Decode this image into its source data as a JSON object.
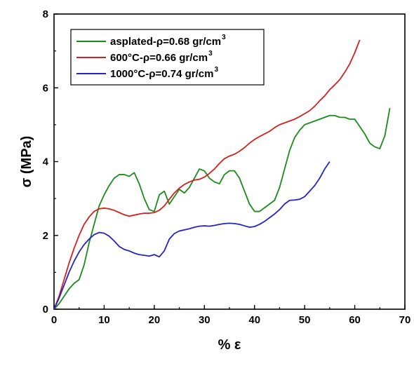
{
  "chart_data": {
    "type": "line",
    "title": "",
    "xlabel": "% ε",
    "ylabel": "σ (MPa)",
    "xlim": [
      0,
      70
    ],
    "ylim": [
      0,
      8
    ],
    "x_ticks": [
      "0",
      "10",
      "20",
      "30",
      "40",
      "50",
      "60",
      "70"
    ],
    "y_ticks": [
      "0",
      "2",
      "4",
      "6",
      "8"
    ],
    "grid": false,
    "legend_position": "top-left",
    "series": [
      {
        "name": "asplated-ρ=0.68 gr/cm",
        "name_sup": "3",
        "color": "#1a8c1a",
        "points": [
          [
            0,
            0
          ],
          [
            1,
            0.15
          ],
          [
            2,
            0.35
          ],
          [
            3,
            0.55
          ],
          [
            4,
            0.7
          ],
          [
            5,
            0.8
          ],
          [
            6,
            1.2
          ],
          [
            7,
            1.8
          ],
          [
            8,
            2.3
          ],
          [
            9,
            2.8
          ],
          [
            10,
            3.1
          ],
          [
            11,
            3.35
          ],
          [
            12,
            3.55
          ],
          [
            13,
            3.65
          ],
          [
            14,
            3.65
          ],
          [
            15,
            3.6
          ],
          [
            16,
            3.7
          ],
          [
            17,
            3.4
          ],
          [
            18,
            3.0
          ],
          [
            19,
            2.7
          ],
          [
            20,
            2.65
          ],
          [
            21,
            3.1
          ],
          [
            22,
            3.2
          ],
          [
            23,
            2.85
          ],
          [
            24,
            3.05
          ],
          [
            25,
            3.25
          ],
          [
            26,
            3.15
          ],
          [
            27,
            3.3
          ],
          [
            28,
            3.55
          ],
          [
            29,
            3.8
          ],
          [
            30,
            3.75
          ],
          [
            31,
            3.55
          ],
          [
            32,
            3.45
          ],
          [
            33,
            3.4
          ],
          [
            34,
            3.65
          ],
          [
            35,
            3.75
          ],
          [
            36,
            3.75
          ],
          [
            37,
            3.55
          ],
          [
            38,
            3.2
          ],
          [
            39,
            2.85
          ],
          [
            40,
            2.65
          ],
          [
            41,
            2.65
          ],
          [
            42,
            2.75
          ],
          [
            43,
            2.85
          ],
          [
            44,
            2.95
          ],
          [
            45,
            3.3
          ],
          [
            46,
            3.8
          ],
          [
            47,
            4.3
          ],
          [
            48,
            4.65
          ],
          [
            49,
            4.85
          ],
          [
            50,
            5.0
          ],
          [
            51,
            5.05
          ],
          [
            52,
            5.1
          ],
          [
            53,
            5.15
          ],
          [
            54,
            5.2
          ],
          [
            55,
            5.25
          ],
          [
            56,
            5.25
          ],
          [
            57,
            5.2
          ],
          [
            58,
            5.2
          ],
          [
            59,
            5.15
          ],
          [
            60,
            5.15
          ],
          [
            61,
            4.95
          ],
          [
            62,
            4.75
          ],
          [
            63,
            4.5
          ],
          [
            64,
            4.4
          ],
          [
            65,
            4.35
          ],
          [
            66,
            4.7
          ],
          [
            67,
            5.45
          ]
        ]
      },
      {
        "name": "600°C-ρ=0.66 gr/cm",
        "name_sup": "3",
        "color": "#d42020",
        "points": [
          [
            0,
            0
          ],
          [
            1,
            0.35
          ],
          [
            2,
            0.8
          ],
          [
            3,
            1.25
          ],
          [
            4,
            1.65
          ],
          [
            5,
            2.0
          ],
          [
            6,
            2.3
          ],
          [
            7,
            2.5
          ],
          [
            8,
            2.65
          ],
          [
            9,
            2.72
          ],
          [
            10,
            2.74
          ],
          [
            11,
            2.72
          ],
          [
            12,
            2.68
          ],
          [
            13,
            2.62
          ],
          [
            14,
            2.56
          ],
          [
            15,
            2.52
          ],
          [
            16,
            2.55
          ],
          [
            17,
            2.58
          ],
          [
            18,
            2.6
          ],
          [
            19,
            2.6
          ],
          [
            20,
            2.62
          ],
          [
            21,
            2.68
          ],
          [
            22,
            2.8
          ],
          [
            23,
            2.98
          ],
          [
            24,
            3.15
          ],
          [
            25,
            3.28
          ],
          [
            26,
            3.38
          ],
          [
            27,
            3.45
          ],
          [
            28,
            3.5
          ],
          [
            29,
            3.52
          ],
          [
            30,
            3.58
          ],
          [
            31,
            3.68
          ],
          [
            32,
            3.8
          ],
          [
            33,
            3.95
          ],
          [
            34,
            4.08
          ],
          [
            35,
            4.15
          ],
          [
            36,
            4.2
          ],
          [
            37,
            4.28
          ],
          [
            38,
            4.38
          ],
          [
            39,
            4.5
          ],
          [
            40,
            4.6
          ],
          [
            41,
            4.68
          ],
          [
            42,
            4.75
          ],
          [
            43,
            4.82
          ],
          [
            44,
            4.92
          ],
          [
            45,
            5.0
          ],
          [
            46,
            5.05
          ],
          [
            47,
            5.1
          ],
          [
            48,
            5.15
          ],
          [
            49,
            5.22
          ],
          [
            50,
            5.3
          ],
          [
            51,
            5.38
          ],
          [
            52,
            5.5
          ],
          [
            53,
            5.65
          ],
          [
            54,
            5.78
          ],
          [
            55,
            5.95
          ],
          [
            56,
            6.08
          ],
          [
            57,
            6.22
          ],
          [
            58,
            6.42
          ],
          [
            59,
            6.65
          ],
          [
            60,
            6.95
          ],
          [
            61,
            7.3
          ]
        ]
      },
      {
        "name": "1000°C-ρ=0.74 gr/cm",
        "name_sup": "3",
        "color": "#2424c8",
        "points": [
          [
            0,
            0
          ],
          [
            1,
            0.3
          ],
          [
            2,
            0.65
          ],
          [
            3,
            1.0
          ],
          [
            4,
            1.3
          ],
          [
            5,
            1.55
          ],
          [
            6,
            1.75
          ],
          [
            7,
            1.9
          ],
          [
            8,
            2.02
          ],
          [
            9,
            2.08
          ],
          [
            10,
            2.06
          ],
          [
            11,
            1.98
          ],
          [
            12,
            1.85
          ],
          [
            13,
            1.7
          ],
          [
            14,
            1.62
          ],
          [
            15,
            1.58
          ],
          [
            16,
            1.52
          ],
          [
            17,
            1.48
          ],
          [
            18,
            1.46
          ],
          [
            19,
            1.44
          ],
          [
            20,
            1.48
          ],
          [
            21,
            1.42
          ],
          [
            22,
            1.58
          ],
          [
            23,
            1.9
          ],
          [
            24,
            2.05
          ],
          [
            25,
            2.12
          ],
          [
            26,
            2.15
          ],
          [
            27,
            2.18
          ],
          [
            28,
            2.22
          ],
          [
            29,
            2.25
          ],
          [
            30,
            2.26
          ],
          [
            31,
            2.25
          ],
          [
            32,
            2.27
          ],
          [
            33,
            2.3
          ],
          [
            34,
            2.32
          ],
          [
            35,
            2.33
          ],
          [
            36,
            2.32
          ],
          [
            37,
            2.3
          ],
          [
            38,
            2.26
          ],
          [
            39,
            2.22
          ],
          [
            40,
            2.24
          ],
          [
            41,
            2.3
          ],
          [
            42,
            2.38
          ],
          [
            43,
            2.48
          ],
          [
            44,
            2.58
          ],
          [
            45,
            2.7
          ],
          [
            46,
            2.85
          ],
          [
            47,
            2.95
          ],
          [
            48,
            2.96
          ],
          [
            49,
            2.98
          ],
          [
            50,
            3.05
          ],
          [
            51,
            3.2
          ],
          [
            52,
            3.35
          ],
          [
            53,
            3.55
          ],
          [
            54,
            3.8
          ],
          [
            55,
            4.0
          ]
        ]
      }
    ]
  }
}
